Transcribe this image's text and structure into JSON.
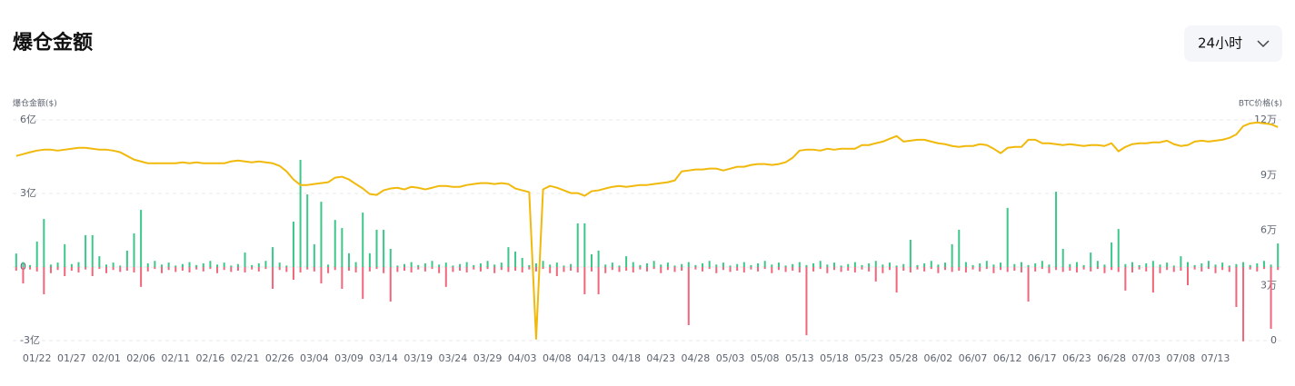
{
  "header": {
    "title": "爆仓金额",
    "range_button": "24小时"
  },
  "chart_data": {
    "type": "bar",
    "y_axis_label": "爆仓金额($)",
    "y2_axis_label": "BTC价格($)",
    "categories": [
      null,
      null,
      null,
      "01/22",
      null,
      null,
      null,
      null,
      "01/27",
      null,
      null,
      null,
      null,
      "02/01",
      null,
      null,
      null,
      null,
      "02/06",
      null,
      null,
      null,
      null,
      "02/11",
      null,
      null,
      null,
      null,
      "02/16",
      null,
      null,
      null,
      null,
      "02/21",
      null,
      null,
      null,
      null,
      "02/26",
      null,
      null,
      null,
      null,
      "03/04",
      null,
      null,
      null,
      null,
      "03/09",
      null,
      null,
      null,
      null,
      "03/14",
      null,
      null,
      null,
      null,
      "03/19",
      null,
      null,
      null,
      null,
      "03/24",
      null,
      null,
      null,
      null,
      "03/29",
      null,
      null,
      null,
      null,
      "04/03",
      null,
      null,
      null,
      null,
      "04/08",
      null,
      null,
      null,
      null,
      "04/13",
      null,
      null,
      null,
      null,
      "04/18",
      null,
      null,
      null,
      null,
      "04/23",
      null,
      null,
      null,
      null,
      "04/28",
      null,
      null,
      null,
      null,
      "05/03",
      null,
      null,
      null,
      null,
      "05/08",
      null,
      null,
      null,
      null,
      "05/13",
      null,
      null,
      null,
      null,
      "05/18",
      null,
      null,
      null,
      null,
      "05/23",
      null,
      null,
      null,
      null,
      "05/28",
      null,
      null,
      null,
      null,
      "06/02",
      null,
      null,
      null,
      null,
      "06/07",
      null,
      null,
      null,
      null,
      "06/12",
      null,
      null,
      null,
      null,
      "06/17",
      null,
      null,
      null,
      null,
      "06/23",
      null,
      null,
      null,
      null,
      "06/28",
      null,
      null,
      null,
      null,
      "07/03",
      null,
      null,
      null,
      null,
      "07/08",
      null,
      null,
      null,
      null,
      "07/13",
      null,
      null,
      null,
      null,
      null,
      null,
      null,
      null,
      null
    ],
    "series": [
      {
        "type": "bar",
        "color": "#3cc68a",
        "values": [
          55000000.0,
          20000000.0,
          8000000.0,
          104000000.0,
          196000000.0,
          10000000.0,
          18000000.0,
          93000000.0,
          12000000.0,
          20000000.0,
          130000000.0,
          130000000.0,
          44000000.0,
          10000000.0,
          18000000.0,
          6000000.0,
          67000000.0,
          137000000.0,
          233000000.0,
          15000000.0,
          25000000.0,
          10000000.0,
          18000000.0,
          6000000.0,
          12000000.0,
          20000000.0,
          8000000.0,
          15000000.0,
          25000000.0,
          10000000.0,
          18000000.0,
          6000000.0,
          12000000.0,
          59000000.0,
          8000000.0,
          15000000.0,
          25000000.0,
          81000000.0,
          18000000.0,
          6000000.0,
          185000000.0,
          437000000.0,
          296000000.0,
          93000000.0,
          266000000.0,
          10000000.0,
          192000000.0,
          159000000.0,
          56000000.0,
          20000000.0,
          222000000.0,
          56000000.0,
          152000000.0,
          152000000.0,
          74000000.0,
          6000000.0,
          12000000.0,
          20000000.0,
          8000000.0,
          15000000.0,
          25000000.0,
          10000000.0,
          18000000.0,
          6000000.0,
          12000000.0,
          20000000.0,
          8000000.0,
          15000000.0,
          25000000.0,
          10000000.0,
          18000000.0,
          81000000.0,
          63000000.0,
          37000000.0,
          8000000.0,
          15000000.0,
          25000000.0,
          10000000.0,
          18000000.0,
          6000000.0,
          12000000.0,
          178000000.0,
          178000000.0,
          52000000.0,
          67000000.0,
          10000000.0,
          18000000.0,
          6000000.0,
          44000000.0,
          20000000.0,
          8000000.0,
          15000000.0,
          25000000.0,
          10000000.0,
          18000000.0,
          6000000.0,
          12000000.0,
          20000000.0,
          8000000.0,
          15000000.0,
          25000000.0,
          10000000.0,
          18000000.0,
          6000000.0,
          12000000.0,
          20000000.0,
          8000000.0,
          15000000.0,
          25000000.0,
          10000000.0,
          18000000.0,
          6000000.0,
          12000000.0,
          20000000.0,
          8000000.0,
          15000000.0,
          25000000.0,
          10000000.0,
          18000000.0,
          6000000.0,
          12000000.0,
          20000000.0,
          8000000.0,
          15000000.0,
          25000000.0,
          10000000.0,
          18000000.0,
          6000000.0,
          12000000.0,
          111000000.0,
          8000000.0,
          15000000.0,
          25000000.0,
          10000000.0,
          18000000.0,
          93000000.0,
          152000000.0,
          20000000.0,
          8000000.0,
          15000000.0,
          25000000.0,
          10000000.0,
          18000000.0,
          241000000.0,
          12000000.0,
          20000000.0,
          8000000.0,
          15000000.0,
          25000000.0,
          10000000.0,
          307000000.0,
          74000000.0,
          12000000.0,
          20000000.0,
          8000000.0,
          59000000.0,
          25000000.0,
          10000000.0,
          100000000.0,
          155000000.0,
          12000000.0,
          20000000.0,
          8000000.0,
          15000000.0,
          25000000.0,
          10000000.0,
          18000000.0,
          6000000.0,
          44000000.0,
          20000000.0,
          8000000.0,
          15000000.0,
          25000000.0,
          10000000.0,
          18000000.0,
          6000000.0,
          12000000.0,
          20000000.0,
          8000000.0,
          15000000.0,
          25000000.0,
          10000000.0,
          96000000.0
        ]
      },
      {
        "type": "bar",
        "color": "#f0667a",
        "values": [
          -15000000.0,
          -67000000.0,
          -10000000.0,
          -18000000.0,
          -111000000.0,
          -25000000.0,
          -12000000.0,
          -37000000.0,
          -15000000.0,
          -22000000.0,
          -10000000.0,
          -37000000.0,
          -8000000.0,
          -25000000.0,
          -12000000.0,
          -20000000.0,
          -15000000.0,
          -22000000.0,
          -81000000.0,
          -18000000.0,
          -8000000.0,
          -25000000.0,
          -12000000.0,
          -20000000.0,
          -15000000.0,
          -22000000.0,
          -10000000.0,
          -18000000.0,
          -8000000.0,
          -25000000.0,
          -12000000.0,
          -20000000.0,
          -15000000.0,
          -22000000.0,
          -10000000.0,
          -18000000.0,
          -8000000.0,
          -89000000.0,
          -12000000.0,
          -20000000.0,
          -52000000.0,
          -22000000.0,
          -10000000.0,
          -18000000.0,
          -67000000.0,
          -25000000.0,
          -12000000.0,
          -89000000.0,
          -15000000.0,
          -22000000.0,
          -130000000.0,
          -18000000.0,
          -8000000.0,
          -25000000.0,
          -141000000.0,
          -20000000.0,
          -15000000.0,
          -22000000.0,
          -10000000.0,
          -18000000.0,
          -8000000.0,
          -25000000.0,
          -81000000.0,
          -20000000.0,
          -15000000.0,
          -22000000.0,
          -10000000.0,
          -18000000.0,
          -8000000.0,
          -25000000.0,
          -12000000.0,
          -20000000.0,
          -15000000.0,
          -22000000.0,
          -10000000.0,
          -18000000.0,
          -8000000.0,
          -25000000.0,
          -37000000.0,
          -20000000.0,
          -15000000.0,
          -22000000.0,
          -111000000.0,
          -18000000.0,
          -111000000.0,
          -25000000.0,
          -12000000.0,
          -20000000.0,
          -15000000.0,
          -22000000.0,
          -10000000.0,
          -18000000.0,
          -8000000.0,
          -25000000.0,
          -12000000.0,
          -20000000.0,
          -15000000.0,
          -237000000.0,
          -10000000.0,
          -18000000.0,
          -8000000.0,
          -25000000.0,
          -12000000.0,
          -20000000.0,
          -15000000.0,
          -22000000.0,
          -10000000.0,
          -18000000.0,
          -8000000.0,
          -25000000.0,
          -12000000.0,
          -20000000.0,
          -15000000.0,
          -22000000.0,
          -278000000.0,
          -18000000.0,
          -8000000.0,
          -25000000.0,
          -12000000.0,
          -20000000.0,
          -15000000.0,
          -22000000.0,
          -10000000.0,
          -18000000.0,
          -59000000.0,
          -25000000.0,
          -12000000.0,
          -104000000.0,
          -15000000.0,
          -22000000.0,
          -10000000.0,
          -18000000.0,
          -8000000.0,
          -25000000.0,
          -12000000.0,
          -20000000.0,
          -15000000.0,
          -22000000.0,
          -10000000.0,
          -18000000.0,
          -8000000.0,
          -25000000.0,
          -12000000.0,
          -20000000.0,
          -15000000.0,
          -22000000.0,
          -141000000.0,
          -18000000.0,
          -8000000.0,
          -25000000.0,
          -12000000.0,
          -20000000.0,
          -15000000.0,
          -22000000.0,
          -10000000.0,
          -18000000.0,
          -8000000.0,
          -25000000.0,
          -12000000.0,
          -20000000.0,
          -96000000.0,
          -22000000.0,
          -10000000.0,
          -18000000.0,
          -104000000.0,
          -25000000.0,
          -12000000.0,
          -20000000.0,
          -15000000.0,
          -74000000.0,
          -10000000.0,
          -18000000.0,
          -8000000.0,
          -25000000.0,
          -12000000.0,
          -20000000.0,
          -163000000.0,
          -303000000.0,
          -10000000.0,
          -18000000.0,
          -8000000.0,
          -252000000.0,
          -12000000.0
        ]
      },
      {
        "type": "line",
        "axis": "y2",
        "color": "#f0b90b",
        "values": [
          100400,
          101400,
          102400,
          103300,
          103800,
          103800,
          103300,
          103800,
          104300,
          104800,
          104800,
          104300,
          103800,
          103800,
          103300,
          102400,
          100400,
          98400,
          97400,
          96400,
          96400,
          96400,
          96400,
          96400,
          96900,
          96400,
          96900,
          96400,
          96400,
          96400,
          96400,
          97400,
          97900,
          97400,
          96900,
          97400,
          96900,
          96400,
          95000,
          92000,
          87600,
          84600,
          84600,
          85100,
          85600,
          86100,
          88600,
          89100,
          87600,
          85100,
          82700,
          79700,
          79200,
          81700,
          82700,
          83100,
          82200,
          83600,
          83100,
          82200,
          83100,
          84100,
          84100,
          83600,
          83600,
          84600,
          85100,
          85600,
          85600,
          85100,
          85600,
          85100,
          82700,
          81700,
          80700,
          1000,
          82200,
          84100,
          83100,
          81700,
          80200,
          80200,
          78700,
          81200,
          81700,
          82700,
          83600,
          84100,
          83600,
          84100,
          84600,
          84600,
          85100,
          85600,
          86100,
          87100,
          92000,
          92500,
          93000,
          93000,
          93500,
          93500,
          92500,
          93500,
          94500,
          94500,
          95500,
          96000,
          96000,
          95500,
          96000,
          97000,
          99400,
          103300,
          103800,
          103800,
          103300,
          104300,
          103800,
          104300,
          104300,
          104300,
          106300,
          106300,
          107300,
          108200,
          109700,
          111200,
          108200,
          108700,
          109200,
          109200,
          108200,
          107300,
          106800,
          105800,
          105300,
          105800,
          105800,
          106800,
          106300,
          104300,
          101900,
          104800,
          105300,
          105300,
          109200,
          109200,
          107300,
          107300,
          106800,
          106300,
          106800,
          106300,
          105800,
          106300,
          106300,
          105800,
          107300,
          102900,
          105300,
          106800,
          107300,
          107300,
          107800,
          107800,
          108700,
          106800,
          105800,
          106300,
          108200,
          108700,
          108200,
          108700,
          109200,
          110200,
          112100,
          116600,
          118100,
          118600,
          118100,
          117600,
          116100
        ]
      }
    ],
    "ylim": [
      -300000000,
      600000000
    ],
    "yticks": [
      {
        "value": 600000000,
        "label": "6亿"
      },
      {
        "value": 300000000,
        "label": "3亿"
      },
      0,
      {
        "value": -300000000,
        "label": "-3亿"
      }
    ],
    "y2lim": [
      0,
      120000
    ],
    "y2ticks": [
      {
        "value": 120000,
        "label": "12万"
      },
      {
        "value": 90000,
        "label": "9万"
      },
      {
        "value": 60000,
        "label": "6万"
      },
      {
        "value": 30000,
        "label": "3万"
      },
      0
    ],
    "grid": true
  }
}
